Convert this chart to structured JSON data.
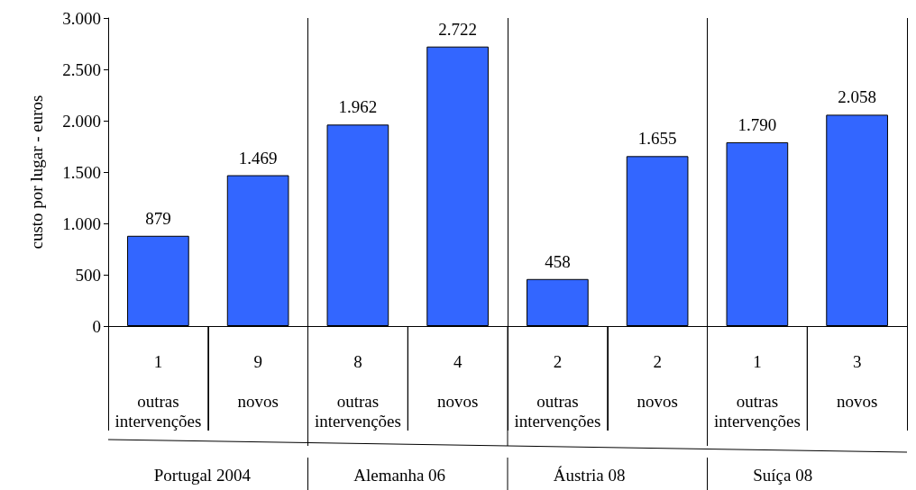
{
  "chart_data": {
    "type": "bar",
    "ylabel": "custo por lugar - euros",
    "categories": [
      "1\n\noutras\nintervenções",
      "9\n\nnovos\n ",
      "8\n\noutras\nintervenções",
      "4\n\nnovos\n ",
      "2\n\noutras\nintervenções",
      "2\n\nnovos\n ",
      "1\n\noutras\nintervenções",
      "3\n\nnovos\n "
    ],
    "values": [
      879,
      1469,
      1962,
      2722,
      458,
      1655,
      1790,
      2058
    ],
    "value_labels": [
      "879",
      "1.469",
      "1.962",
      "2.722",
      "458",
      "1.655",
      "1.790",
      "2.058"
    ],
    "color": "#3366ff",
    "ylim": [
      0,
      3000
    ],
    "yticks": [
      {
        "value": 0,
        "label": "0"
      },
      {
        "value": 500,
        "label": "500"
      },
      {
        "value": 1000,
        "label": "1.000"
      },
      {
        "value": 1500,
        "label": "1.500"
      },
      {
        "value": 2000,
        "label": "2.000"
      },
      {
        "value": 2500,
        "label": "2.500"
      },
      {
        "value": 3000,
        "label": "3.000"
      }
    ],
    "annotations": [
      "Portugal 2004",
      "Alemanha 06",
      "Áustria 08",
      "Suíça 08"
    ],
    "grid": false
  }
}
